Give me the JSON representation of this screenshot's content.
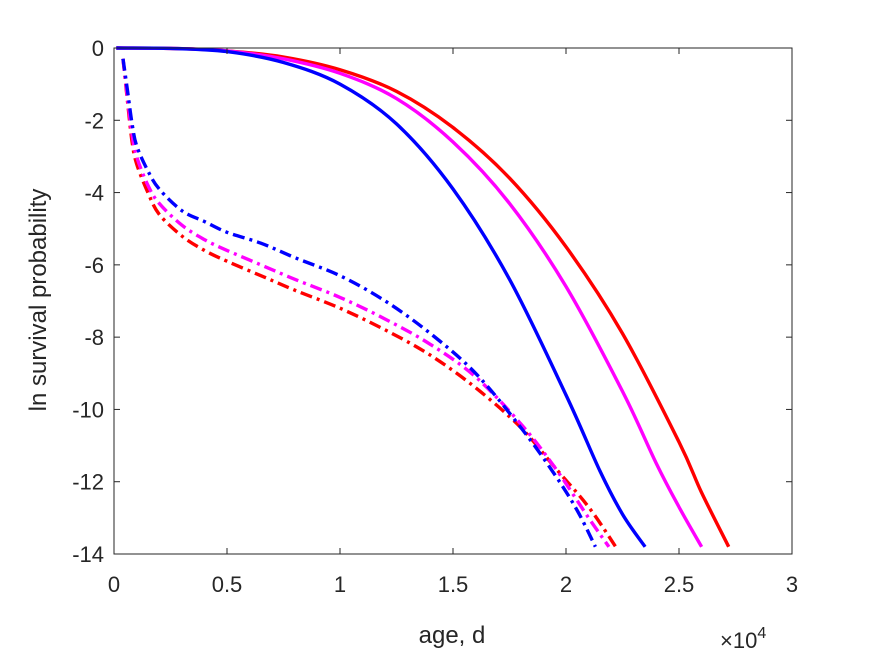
{
  "chart_data": {
    "type": "line",
    "title": "",
    "xlabel": "age, d",
    "ylabel": "ln survival probability",
    "x_multiplier": {
      "base": "×10",
      "exponent": "4"
    },
    "xlim": [
      0,
      30000
    ],
    "ylim": [
      -14,
      0
    ],
    "x_ticks": [
      0,
      5000,
      10000,
      15000,
      20000,
      25000,
      30000
    ],
    "x_tick_labels": [
      "0",
      "0.5",
      "1",
      "1.5",
      "2",
      "2.5",
      "3"
    ],
    "y_ticks": [
      0,
      -2,
      -4,
      -6,
      -8,
      -10,
      -12,
      -14
    ],
    "y_tick_labels": [
      "0",
      "-2",
      "-4",
      "-6",
      "-8",
      "-10",
      "-12",
      "-14"
    ],
    "grid": false,
    "legend": "none",
    "series": [
      {
        "color": "#ff0000",
        "style": "solid",
        "x": [
          100,
          2500,
          5000,
          7500,
          10000,
          12500,
          15000,
          17500,
          20000,
          22500,
          25000,
          26000,
          27200
        ],
        "y": [
          0,
          -0.01,
          -0.08,
          -0.25,
          -0.6,
          -1.2,
          -2.2,
          -3.6,
          -5.5,
          -7.9,
          -10.9,
          -12.3,
          -13.8
        ]
      },
      {
        "color": "#ff00ff",
        "style": "solid",
        "x": [
          100,
          2500,
          5000,
          7500,
          10000,
          12500,
          15000,
          17500,
          20000,
          22500,
          24000,
          25000,
          26000
        ],
        "y": [
          0,
          -0.01,
          -0.08,
          -0.3,
          -0.7,
          -1.4,
          -2.6,
          -4.3,
          -6.6,
          -9.5,
          -11.5,
          -12.7,
          -13.8
        ]
      },
      {
        "color": "#0000ff",
        "style": "solid",
        "x": [
          100,
          2500,
          5000,
          7500,
          10000,
          12500,
          15000,
          17500,
          20000,
          21500,
          22500,
          23500
        ],
        "y": [
          0,
          -0.01,
          -0.1,
          -0.4,
          -1.0,
          -2.1,
          -3.9,
          -6.4,
          -9.6,
          -11.7,
          -12.9,
          -13.8
        ]
      },
      {
        "color": "#ff0000",
        "style": "dashdot",
        "x": [
          400,
          600,
          800,
          1000,
          1500,
          2000,
          3000,
          4000,
          5000,
          6500,
          8000,
          10000,
          12000,
          14000,
          16000,
          18000,
          19500,
          21000,
          22200
        ],
        "y": [
          -0.3,
          -1.5,
          -2.6,
          -3.2,
          -4.0,
          -4.6,
          -5.2,
          -5.6,
          -5.9,
          -6.3,
          -6.7,
          -7.2,
          -7.8,
          -8.5,
          -9.4,
          -10.5,
          -11.6,
          -12.7,
          -13.8
        ]
      },
      {
        "color": "#ff00ff",
        "style": "dashdot",
        "x": [
          400,
          600,
          800,
          1000,
          1500,
          2000,
          3000,
          4000,
          5000,
          6500,
          8000,
          10000,
          12000,
          14000,
          16000,
          18000,
          19500,
          21000,
          21900
        ],
        "y": [
          -0.3,
          -1.4,
          -2.4,
          -3.0,
          -3.8,
          -4.3,
          -4.9,
          -5.3,
          -5.6,
          -6.0,
          -6.4,
          -6.9,
          -7.5,
          -8.2,
          -9.1,
          -10.4,
          -11.6,
          -13.0,
          -13.8
        ]
      },
      {
        "color": "#0000ff",
        "style": "dashdot",
        "x": [
          400,
          600,
          800,
          1000,
          1500,
          2000,
          3000,
          4000,
          5000,
          6500,
          8000,
          10000,
          12000,
          14000,
          16000,
          18000,
          19500,
          20500,
          21300
        ],
        "y": [
          -0.3,
          -1.2,
          -2.1,
          -2.7,
          -3.4,
          -3.9,
          -4.5,
          -4.8,
          -5.1,
          -5.4,
          -5.8,
          -6.3,
          -7.0,
          -7.9,
          -9.0,
          -10.5,
          -11.8,
          -12.8,
          -13.8
        ]
      }
    ]
  }
}
